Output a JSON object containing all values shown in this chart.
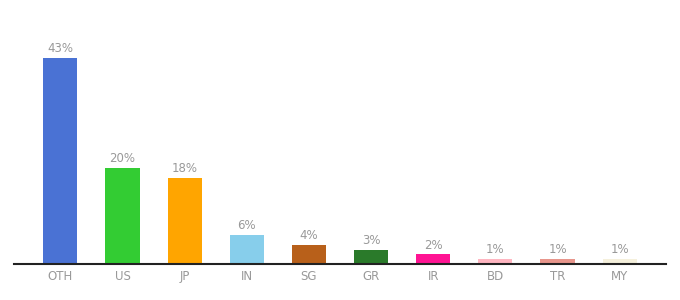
{
  "categories": [
    "OTH",
    "US",
    "JP",
    "IN",
    "SG",
    "GR",
    "IR",
    "BD",
    "TR",
    "MY"
  ],
  "values": [
    43,
    20,
    18,
    6,
    4,
    3,
    2,
    1,
    1,
    1
  ],
  "labels": [
    "43%",
    "20%",
    "18%",
    "6%",
    "4%",
    "3%",
    "2%",
    "1%",
    "1%",
    "1%"
  ],
  "bar_colors": [
    "#4A72D4",
    "#33CC33",
    "#FFA500",
    "#87CEEB",
    "#B8601A",
    "#2A7A2A",
    "#FF1493",
    "#FFB6C1",
    "#E8968C",
    "#F5F0DC"
  ],
  "ylim": [
    0,
    50
  ],
  "background_color": "#ffffff",
  "label_fontsize": 8.5,
  "tick_fontsize": 8.5,
  "label_color": "#999999",
  "tick_color": "#999999",
  "bar_width": 0.55
}
